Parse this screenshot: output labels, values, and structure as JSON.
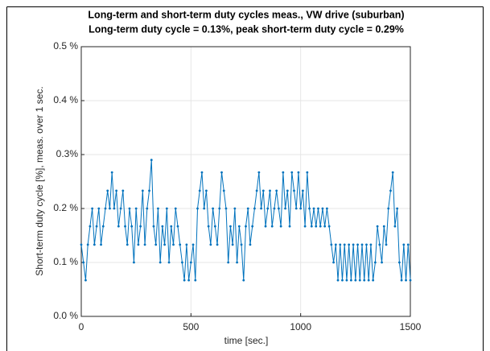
{
  "chart_data": {
    "type": "line",
    "title": "Long-term and short-term duty cycles meas., VW drive (suburban)",
    "subtitle": "Long-term duty cycle = 0.13%, peak short-term duty cycle = 0.29%",
    "x_label": "time [sec.]",
    "y_label": "Short-term duty cycle [%], meas. over 1 sec.",
    "xlim": [
      0,
      1500
    ],
    "ylim": [
      0,
      0.5
    ],
    "xticks": [
      0,
      500,
      1000,
      1500
    ],
    "yticks": [
      {
        "value": 0,
        "label": "0.0 %"
      },
      {
        "value": 0.1,
        "label": "0.1 %"
      },
      {
        "value": 0.2,
        "label": "0.2 %"
      },
      {
        "value": 0.3,
        "label": "0.3%"
      },
      {
        "value": 0.4,
        "label": "0.4 %"
      },
      {
        "value": 0.5,
        "label": "0.5 %"
      }
    ],
    "grid": true,
    "x": [
      0,
      10,
      20,
      30,
      40,
      50,
      60,
      70,
      80,
      90,
      100,
      110,
      120,
      130,
      140,
      150,
      160,
      170,
      180,
      190,
      200,
      210,
      220,
      230,
      240,
      250,
      260,
      270,
      280,
      290,
      300,
      310,
      320,
      330,
      340,
      350,
      360,
      370,
      380,
      390,
      400,
      410,
      420,
      430,
      440,
      450,
      460,
      470,
      480,
      490,
      500,
      510,
      520,
      530,
      540,
      550,
      560,
      570,
      580,
      590,
      600,
      610,
      620,
      630,
      640,
      650,
      660,
      670,
      680,
      690,
      700,
      710,
      720,
      730,
      740,
      750,
      760,
      770,
      780,
      790,
      800,
      810,
      820,
      830,
      840,
      850,
      860,
      870,
      880,
      890,
      900,
      910,
      920,
      930,
      940,
      950,
      960,
      970,
      980,
      990,
      1000,
      1010,
      1020,
      1030,
      1040,
      1050,
      1060,
      1070,
      1080,
      1090,
      1100,
      1110,
      1120,
      1130,
      1140,
      1150,
      1160,
      1170,
      1180,
      1190,
      1200,
      1210,
      1220,
      1230,
      1240,
      1250,
      1260,
      1270,
      1280,
      1290,
      1300,
      1310,
      1320,
      1330,
      1340,
      1350,
      1360,
      1370,
      1380,
      1390,
      1400,
      1410,
      1420,
      1430,
      1440,
      1450,
      1460,
      1470,
      1480,
      1490,
      1500
    ],
    "series": [
      {
        "color": "#0072bd",
        "values": [
          0.133,
          0.1,
          0.067,
          0.133,
          0.167,
          0.2,
          0.133,
          0.167,
          0.2,
          0.133,
          0.167,
          0.2,
          0.233,
          0.2,
          0.267,
          0.2,
          0.233,
          0.167,
          0.2,
          0.233,
          0.167,
          0.133,
          0.2,
          0.167,
          0.1,
          0.2,
          0.133,
          0.167,
          0.233,
          0.133,
          0.2,
          0.233,
          0.29,
          0.167,
          0.133,
          0.2,
          0.1,
          0.167,
          0.133,
          0.2,
          0.1,
          0.167,
          0.133,
          0.2,
          0.167,
          0.133,
          0.1,
          0.067,
          0.133,
          0.067,
          0.1,
          0.133,
          0.067,
          0.2,
          0.233,
          0.267,
          0.2,
          0.233,
          0.167,
          0.133,
          0.2,
          0.167,
          0.133,
          0.2,
          0.267,
          0.233,
          0.2,
          0.1,
          0.167,
          0.133,
          0.2,
          0.1,
          0.167,
          0.133,
          0.067,
          0.167,
          0.2,
          0.133,
          0.167,
          0.2,
          0.233,
          0.267,
          0.2,
          0.233,
          0.167,
          0.2,
          0.233,
          0.167,
          0.2,
          0.233,
          0.2,
          0.167,
          0.267,
          0.2,
          0.233,
          0.167,
          0.267,
          0.233,
          0.2,
          0.267,
          0.2,
          0.233,
          0.167,
          0.267,
          0.2,
          0.167,
          0.2,
          0.167,
          0.2,
          0.167,
          0.2,
          0.167,
          0.2,
          0.167,
          0.133,
          0.1,
          0.133,
          0.067,
          0.133,
          0.067,
          0.133,
          0.067,
          0.133,
          0.067,
          0.133,
          0.067,
          0.133,
          0.067,
          0.133,
          0.067,
          0.133,
          0.067,
          0.133,
          0.067,
          0.1,
          0.167,
          0.133,
          0.1,
          0.167,
          0.133,
          0.2,
          0.233,
          0.267,
          0.167,
          0.2,
          0.1,
          0.067,
          0.133,
          0.067,
          0.133,
          0.067
        ]
      }
    ]
  }
}
